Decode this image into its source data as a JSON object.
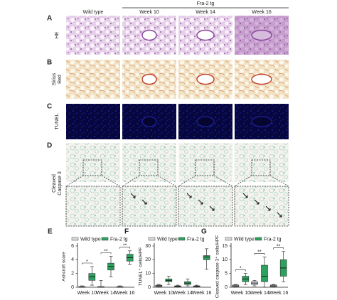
{
  "header": {
    "group": "Fra-2 tg",
    "columns": [
      "Wild type",
      "Week 10",
      "Week 14",
      "Week 16"
    ]
  },
  "panels": [
    {
      "letter": "A",
      "label": [
        "HE"
      ]
    },
    {
      "letter": "B",
      "label": [
        "Sirius",
        "Red"
      ]
    },
    {
      "letter": "C",
      "label": [
        "TUNEL"
      ]
    },
    {
      "letter": "D",
      "label": [
        "Cleaved",
        "Caspase 3"
      ]
    }
  ],
  "chart_data": [
    {
      "type": "box",
      "letter": "E",
      "ylabel": "Ashcroft score",
      "categories": [
        "Week 10",
        "Week 14",
        "Week 16"
      ],
      "ylim": [
        0,
        6
      ],
      "yticks": [
        0,
        2,
        4,
        6
      ],
      "annotations": [
        "*",
        "**",
        "**"
      ],
      "series": [
        {
          "name": "Wild type",
          "color": "#d9d9d9",
          "values": [
            {
              "min": 0,
              "q1": 0,
              "median": 0,
              "q3": 0.1,
              "max": 0.2
            },
            {
              "min": 0,
              "q1": 0,
              "median": 0,
              "q3": 0.1,
              "max": 1
            },
            {
              "min": 0,
              "q1": 0,
              "median": 0,
              "q3": 0.1,
              "max": 0.2
            }
          ]
        },
        {
          "name": "Fra-2 tg",
          "color": "#2ca25f",
          "values": [
            {
              "min": 0.3,
              "q1": 1,
              "median": 1.5,
              "q3": 2,
              "max": 3
            },
            {
              "min": 1.5,
              "q1": 2.5,
              "median": 3,
              "q3": 3.5,
              "max": 4.5
            },
            {
              "min": 3.3,
              "q1": 3.8,
              "median": 4.3,
              "q3": 4.8,
              "max": 5.3
            }
          ]
        }
      ]
    },
    {
      "type": "box",
      "letter": "F",
      "ylabel": "TUNEL⁺ cells/HPF",
      "categories": [
        "Week 10",
        "Week 14",
        "Week 16"
      ],
      "ylim": [
        0,
        30
      ],
      "yticks": [
        0,
        10,
        20,
        30
      ],
      "series": [
        {
          "name": "Wild type",
          "color": "#d9d9d9",
          "values": [
            {
              "min": 0,
              "q1": 0.5,
              "median": 1,
              "q3": 1.5,
              "max": 2
            },
            {
              "min": 0,
              "q1": 0.3,
              "median": 0.6,
              "q3": 1,
              "max": 1.5
            },
            {
              "min": 0,
              "q1": 0.3,
              "median": 0.6,
              "q3": 1,
              "max": 1.5
            }
          ]
        },
        {
          "name": "Fra-2 tg",
          "color": "#2ca25f",
          "values": [
            {
              "min": 2,
              "q1": 4,
              "median": 5,
              "q3": 6,
              "max": 8
            },
            {
              "min": 1,
              "q1": 2,
              "median": 3,
              "q3": 4,
              "max": 6
            },
            {
              "min": 13,
              "q1": 20,
              "median": 22,
              "q3": 23,
              "max": 28
            }
          ]
        }
      ]
    },
    {
      "type": "box",
      "letter": "G",
      "ylabel": "Cleaved caspase 3⁺ cells/HPF",
      "categories": [
        "Week 10",
        "Week 14",
        "Week 16"
      ],
      "ylim": [
        0,
        15
      ],
      "yticks": [
        0,
        5,
        10,
        15
      ],
      "annotations": [
        "*",
        "**",
        "**"
      ],
      "series": [
        {
          "name": "Wild type",
          "color": "#d9d9d9",
          "values": [
            {
              "min": 0,
              "q1": 0.2,
              "median": 0.5,
              "q3": 0.8,
              "max": 1
            },
            {
              "min": 0.5,
              "q1": 1,
              "median": 1.5,
              "q3": 2,
              "max": 2.5
            },
            {
              "min": 0,
              "q1": 0.2,
              "median": 0.5,
              "q3": 0.8,
              "max": 1
            }
          ]
        },
        {
          "name": "Fra-2 tg",
          "color": "#2ca25f",
          "values": [
            {
              "min": 1,
              "q1": 2,
              "median": 3,
              "q3": 4,
              "max": 5
            },
            {
              "min": 0,
              "q1": 2,
              "median": 4,
              "q3": 8,
              "max": 11
            },
            {
              "min": 2,
              "q1": 4,
              "median": 7,
              "q3": 10,
              "max": 13
            }
          ]
        }
      ]
    }
  ]
}
